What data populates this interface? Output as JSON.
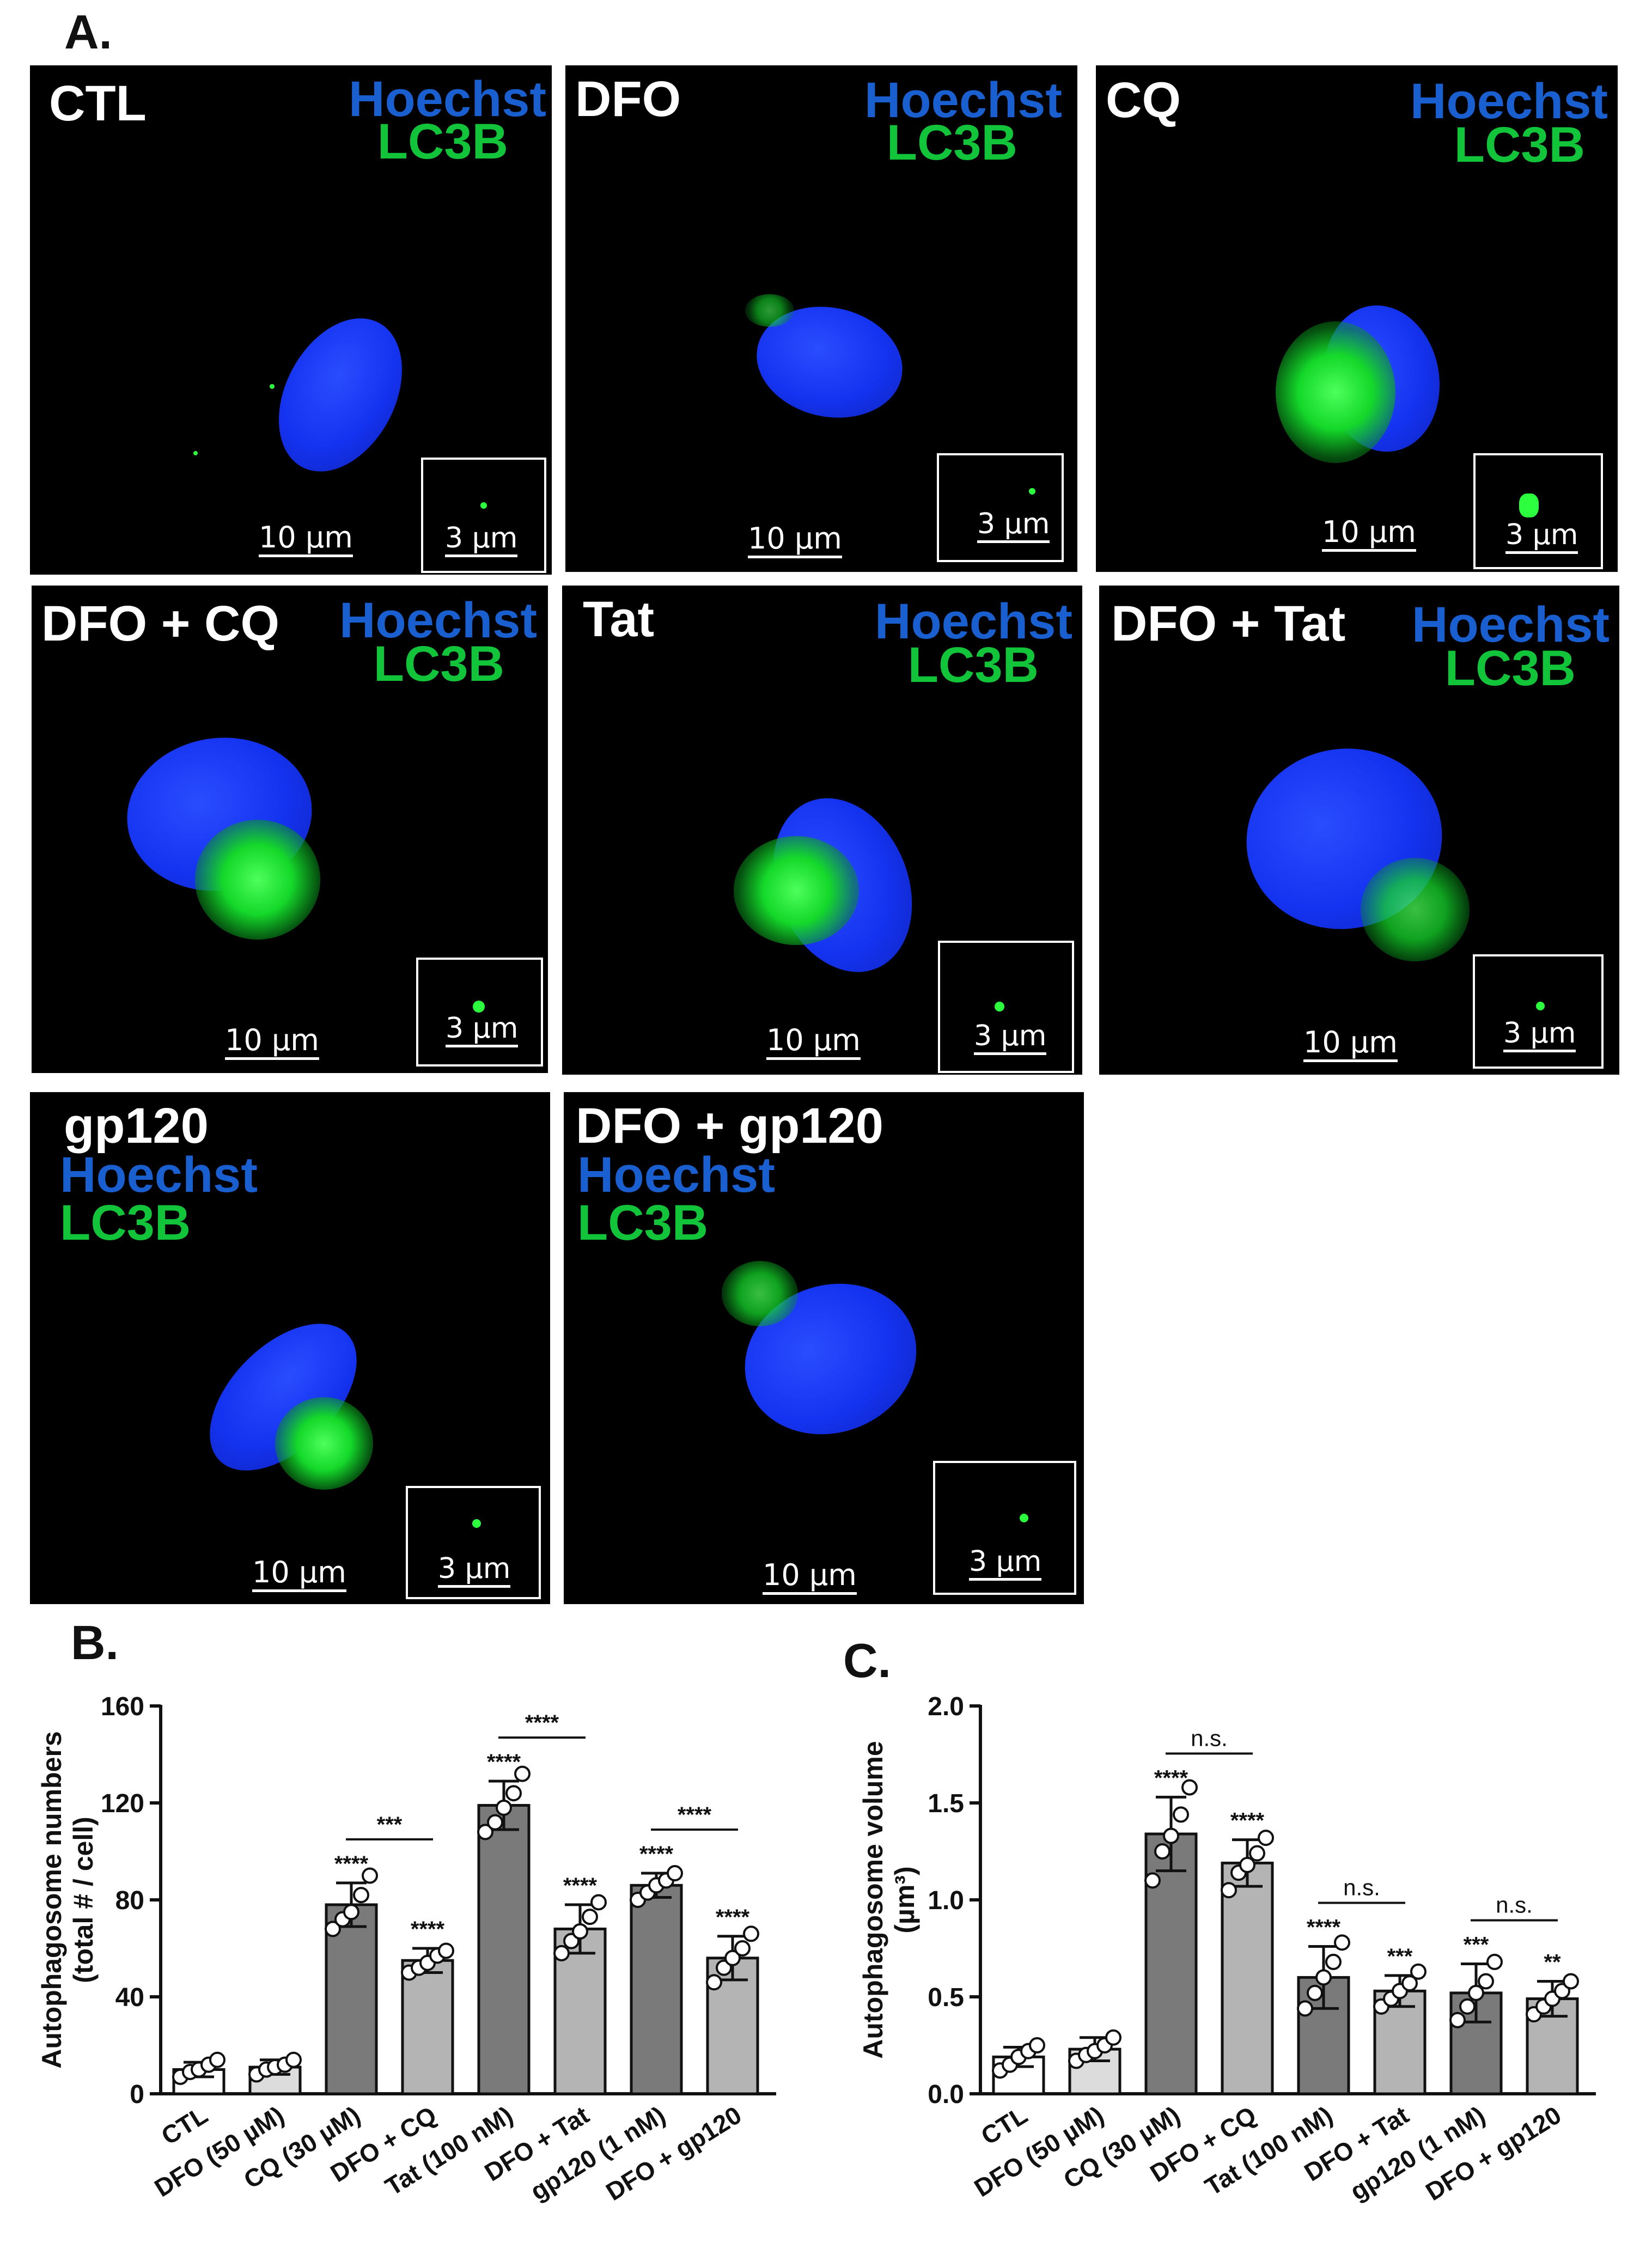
{
  "panel_letters": {
    "a": "A.",
    "b": "B.",
    "c": "C."
  },
  "stain": {
    "hoechst": "Hoechst",
    "lc3b": "LC3B"
  },
  "scalebars": {
    "large": "10 µm",
    "small": "3 µm"
  },
  "tiles": [
    {
      "title": "CTL"
    },
    {
      "title": "DFO"
    },
    {
      "title": "CQ"
    },
    {
      "title": "DFO + CQ"
    },
    {
      "title": "Tat"
    },
    {
      "title": "DFO + Tat"
    },
    {
      "title": "gp120"
    },
    {
      "title": "DFO + gp120"
    }
  ],
  "colors": {
    "nucleus": "#1433f0",
    "lc3b": "#14d82a",
    "hoechst_label": "#1a5fd0",
    "lc3b_label": "#12c43a"
  },
  "chart_data": [
    {
      "type": "bar",
      "categories": [
        "CTL",
        "DFO (50 µM)",
        "CQ (30 µM)",
        "DFO + CQ",
        "Tat (100 nM)",
        "DFO + Tat",
        "gp120 (1 nM)",
        "DFO + gp120"
      ],
      "values": [
        10,
        11,
        78,
        55,
        119,
        68,
        86,
        56
      ],
      "errors": [
        3,
        3,
        9,
        5,
        10,
        10,
        5,
        9
      ],
      "points": [
        [
          7,
          9,
          10,
          12,
          14
        ],
        [
          8,
          10,
          11,
          12,
          14
        ],
        [
          68,
          72,
          75,
          82,
          90
        ],
        [
          50,
          52,
          54,
          57,
          59
        ],
        [
          108,
          112,
          118,
          124,
          132
        ],
        [
          58,
          63,
          67,
          73,
          79
        ],
        [
          80,
          83,
          86,
          88,
          91
        ],
        [
          46,
          52,
          56,
          60,
          66
        ]
      ],
      "bar_colors": [
        "#ffffff",
        "#dcdcdc",
        "#7a7a7a",
        "#b4b4b4",
        "#7a7a7a",
        "#b4b4b4",
        "#7a7a7a",
        "#b4b4b4"
      ],
      "ylabel_line1": "Autophagosome numbers",
      "ylabel_line2": "(total # / cell)",
      "ylim": [
        0,
        160
      ],
      "yticks": [
        "0",
        "40",
        "80",
        "120",
        "160"
      ],
      "significance": [
        "",
        "",
        "****",
        "****",
        "****",
        "****",
        "****",
        "****"
      ],
      "brackets": [
        {
          "from": 2,
          "to": 3,
          "label": "***"
        },
        {
          "from": 4,
          "to": 5,
          "label": "****"
        },
        {
          "from": 6,
          "to": 7,
          "label": "****"
        }
      ]
    },
    {
      "type": "bar",
      "categories": [
        "CTL",
        "DFO (50 µM)",
        "CQ (30 µM)",
        "DFO + CQ",
        "Tat (100 nM)",
        "DFO + Tat",
        "gp120 (1 nM)",
        "DFO + gp120"
      ],
      "values": [
        0.19,
        0.23,
        1.34,
        1.19,
        0.6,
        0.53,
        0.52,
        0.49
      ],
      "errors": [
        0.05,
        0.06,
        0.19,
        0.12,
        0.16,
        0.08,
        0.15,
        0.09
      ],
      "points": [
        [
          0.12,
          0.15,
          0.19,
          0.22,
          0.25
        ],
        [
          0.17,
          0.2,
          0.22,
          0.25,
          0.29
        ],
        [
          1.1,
          1.25,
          1.33,
          1.44,
          1.58
        ],
        [
          1.05,
          1.14,
          1.18,
          1.24,
          1.32
        ],
        [
          0.44,
          0.52,
          0.6,
          0.68,
          0.78
        ],
        [
          0.45,
          0.49,
          0.53,
          0.57,
          0.63
        ],
        [
          0.38,
          0.45,
          0.52,
          0.58,
          0.68
        ],
        [
          0.41,
          0.45,
          0.49,
          0.53,
          0.58
        ]
      ],
      "bar_colors": [
        "#ffffff",
        "#dcdcdc",
        "#7a7a7a",
        "#b4b4b4",
        "#7a7a7a",
        "#b4b4b4",
        "#7a7a7a",
        "#b4b4b4"
      ],
      "ylabel_line1": "Autophagosome volume",
      "ylabel_line2": "(µm³)",
      "ylim": [
        0,
        2.0
      ],
      "yticks": [
        "0.0",
        "0.5",
        "1.0",
        "1.5",
        "2.0"
      ],
      "significance": [
        "",
        "",
        "****",
        "****",
        "****",
        "***",
        "***",
        "**"
      ],
      "brackets": [
        {
          "from": 2,
          "to": 3,
          "label": "n.s."
        },
        {
          "from": 4,
          "to": 5,
          "label": "n.s."
        },
        {
          "from": 6,
          "to": 7,
          "label": "n.s."
        }
      ]
    }
  ]
}
